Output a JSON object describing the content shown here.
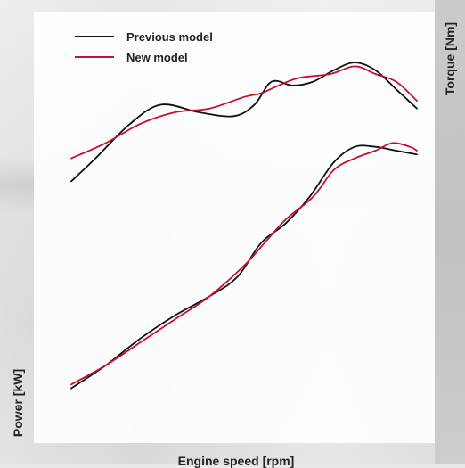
{
  "chart_data": {
    "type": "line",
    "xlabel": "Engine speed [rpm]",
    "ylabel_left": "Power [kW]",
    "ylabel_right": "Torque [Nm]",
    "xlim": [
      0,
      100
    ],
    "ylim": [
      0,
      100
    ],
    "legend": {
      "placement": "top-left",
      "entries": [
        {
          "name": "Previous model",
          "color": "#111111"
        },
        {
          "name": "New model",
          "color": "#c8102e"
        }
      ]
    },
    "series": [
      {
        "name": "Previous model",
        "axis": "right",
        "metric": "torque",
        "color": "#111111",
        "x": [
          0,
          7,
          17,
          26,
          37,
          47,
          53,
          58,
          64,
          70,
          76,
          82,
          88,
          94,
          100
        ],
        "y": [
          62,
          68,
          77,
          82,
          80,
          79,
          82,
          88,
          87,
          88,
          91,
          93,
          91,
          86,
          81
        ]
      },
      {
        "name": "New model",
        "axis": "right",
        "metric": "torque",
        "color": "#c8102e",
        "x": [
          0,
          10,
          20,
          30,
          40,
          50,
          55,
          60,
          66,
          75,
          82,
          88,
          94,
          100
        ],
        "y": [
          68,
          72,
          77,
          80,
          81,
          84,
          85,
          87,
          89,
          90,
          92,
          90,
          88,
          83
        ]
      },
      {
        "name": "Previous model",
        "axis": "left",
        "metric": "power",
        "color": "#111111",
        "x": [
          0,
          10,
          20,
          30,
          40,
          48,
          55,
          62,
          69,
          76,
          82,
          88,
          94,
          100
        ],
        "y": [
          8,
          14,
          21,
          27,
          32,
          37,
          46,
          51,
          58,
          67,
          71,
          71,
          70,
          69
        ]
      },
      {
        "name": "New model",
        "axis": "left",
        "metric": "power",
        "color": "#c8102e",
        "x": [
          0,
          10,
          20,
          30,
          40,
          50,
          56,
          62,
          70,
          76,
          82,
          88,
          93,
          98,
          100
        ],
        "y": [
          9,
          14,
          20,
          26,
          32,
          40,
          46,
          52,
          58,
          65,
          68,
          70,
          72,
          71,
          70
        ]
      }
    ]
  }
}
